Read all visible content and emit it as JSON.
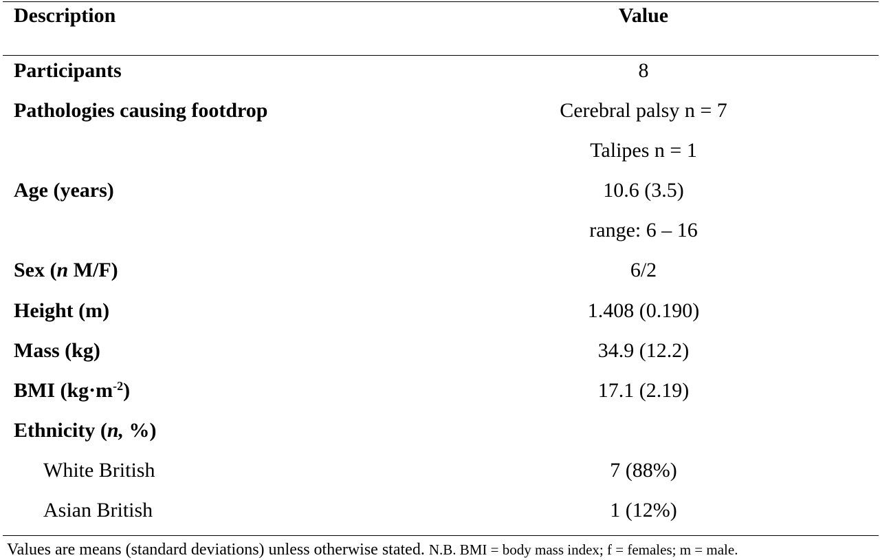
{
  "table": {
    "headers": {
      "description": "Description",
      "value": "Value"
    },
    "rows": [
      {
        "label": "Participants",
        "value": "8"
      },
      {
        "label": "Pathologies causing footdrop",
        "value": "Cerebral palsy n = 7"
      },
      {
        "label": "",
        "value": "Talipes n = 1"
      },
      {
        "label": "Age (years)",
        "value": "10.6 (3.5)"
      },
      {
        "label": "",
        "value": "range: 6 – 16"
      },
      {
        "label_prefix": "Sex (",
        "label_italic": "n",
        "label_suffix": " M/F)",
        "value": "6/2"
      },
      {
        "label": "Height (m)",
        "value": "1.408 (0.190)"
      },
      {
        "label": "Mass (kg)",
        "value": "34.9 (12.2)"
      },
      {
        "label_prefix": "BMI (kg·m",
        "label_sup": "-2",
        "label_suffix": ")",
        "value": "17.1 (2.19)"
      },
      {
        "label_prefix": "Ethnicity (",
        "label_italic": "n,",
        "label_suffix": " %)",
        "value": ""
      },
      {
        "label": "White British",
        "value": "7 (88%)"
      },
      {
        "label": "Asian British",
        "value": "1 (12%)"
      }
    ]
  },
  "footnote": {
    "main": "Values are means (standard deviations) unless otherwise stated.",
    "note": "N.B. BMI = body mass index; f = females; m = male."
  }
}
